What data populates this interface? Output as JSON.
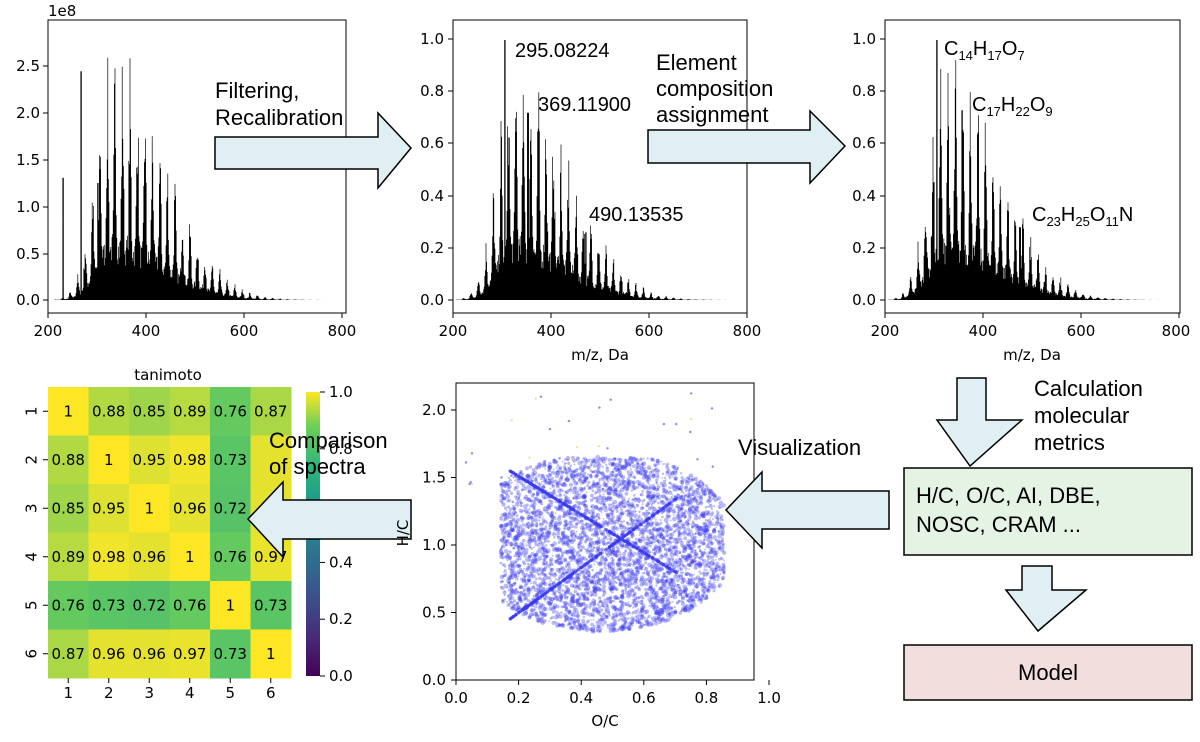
{
  "spectra": [
    {
      "offset_label": "1e8",
      "yticks": [
        "0.0",
        "0.5",
        "1.0",
        "1.5",
        "2.0",
        "2.5"
      ],
      "xticks": [
        "200",
        "400",
        "600",
        "800"
      ],
      "xlabel": ""
    },
    {
      "yticks": [
        "0.0",
        "0.2",
        "0.4",
        "0.6",
        "0.8",
        "1.0"
      ],
      "xticks": [
        "200",
        "400",
        "600",
        "800"
      ],
      "xlabel": "m/z, Da",
      "annotations": [
        "295.08224",
        "369.11900",
        "490.13535"
      ]
    },
    {
      "yticks": [
        "0.0",
        "0.2",
        "0.4",
        "0.6",
        "0.8",
        "1.0"
      ],
      "xticks": [
        "200",
        "400",
        "600",
        "800"
      ],
      "xlabel": "m/z, Da",
      "formulas": [
        [
          [
            "C",
            ""
          ],
          [
            "14",
            "s"
          ],
          [
            "H",
            ""
          ],
          [
            "17",
            "s"
          ],
          [
            "O",
            ""
          ],
          [
            "7",
            "s"
          ]
        ],
        [
          [
            "C",
            ""
          ],
          [
            "17",
            "s"
          ],
          [
            "H",
            ""
          ],
          [
            "22",
            "s"
          ],
          [
            "O",
            ""
          ],
          [
            "9",
            "s"
          ]
        ],
        [
          [
            "C",
            ""
          ],
          [
            "23",
            "s"
          ],
          [
            "H",
            ""
          ],
          [
            "25",
            "s"
          ],
          [
            "O",
            ""
          ],
          [
            "11",
            "s"
          ],
          [
            "N",
            ""
          ]
        ]
      ]
    }
  ],
  "steps": {
    "filtering": [
      "Filtering,",
      "Recalibration"
    ],
    "assignment": [
      "Element",
      "composition",
      "assignment"
    ],
    "calculation": [
      "Calculation",
      "molecular",
      "metrics"
    ],
    "metrics_box": [
      "H/C, O/C, AI, DBE,",
      "NOSC, CRAM ..."
    ],
    "visualization": "Visualization",
    "comparison": [
      "Comparison",
      "of spectra"
    ],
    "model": "Model"
  },
  "heatmap": {
    "title": "tanimoto",
    "labels": [
      "1",
      "2",
      "3",
      "4",
      "5",
      "6"
    ],
    "values": [
      [
        1,
        0.88,
        0.85,
        0.89,
        0.76,
        0.87
      ],
      [
        0.88,
        1,
        0.95,
        0.98,
        0.73,
        0.96
      ],
      [
        0.85,
        0.95,
        1,
        0.96,
        0.72,
        0.96
      ],
      [
        0.89,
        0.98,
        0.96,
        1,
        0.76,
        0.97
      ],
      [
        0.76,
        0.73,
        0.72,
        0.76,
        1,
        0.73
      ],
      [
        0.87,
        0.96,
        0.96,
        0.97,
        0.73,
        1
      ]
    ],
    "cell_text": [
      [
        "1",
        "0.88",
        "0.85",
        "0.89",
        "0.76",
        "0.87"
      ],
      [
        "0.88",
        "1",
        "0.95",
        "0.98",
        "0.73",
        ""
      ],
      [
        "0.85",
        "0.95",
        "1",
        "0.96",
        "0.72",
        ""
      ],
      [
        "0.89",
        "0.98",
        "0.96",
        "1",
        "0.76",
        "0.97"
      ],
      [
        "0.76",
        "0.73",
        "0.72",
        "0.76",
        "1",
        "0.73"
      ],
      [
        "0.87",
        "0.96",
        "0.96",
        "0.97",
        "0.73",
        "1"
      ]
    ],
    "colorbar_ticks": [
      "0.0",
      "0.2",
      "0.4",
      "0.6",
      "0.8",
      "1.0"
    ]
  },
  "scatter": {
    "xlabel": "O/C",
    "ylabel": "H/C",
    "xticks": [
      "0.0",
      "0.2",
      "0.4",
      "0.6",
      "0.8",
      "1.0"
    ],
    "yticks": [
      "0.0",
      "0.5",
      "1.0",
      "1.5",
      "2.0"
    ],
    "xlim": [
      0,
      1.0
    ],
    "ylim": [
      0,
      2.2
    ]
  },
  "colors": {
    "arrow_fill": "#e0eff3",
    "metrics_fill": "#e5f3e5",
    "model_fill": "#f3dede",
    "scatter_point": "#3a3af0",
    "scatter_outlier": "#f2c46a"
  }
}
